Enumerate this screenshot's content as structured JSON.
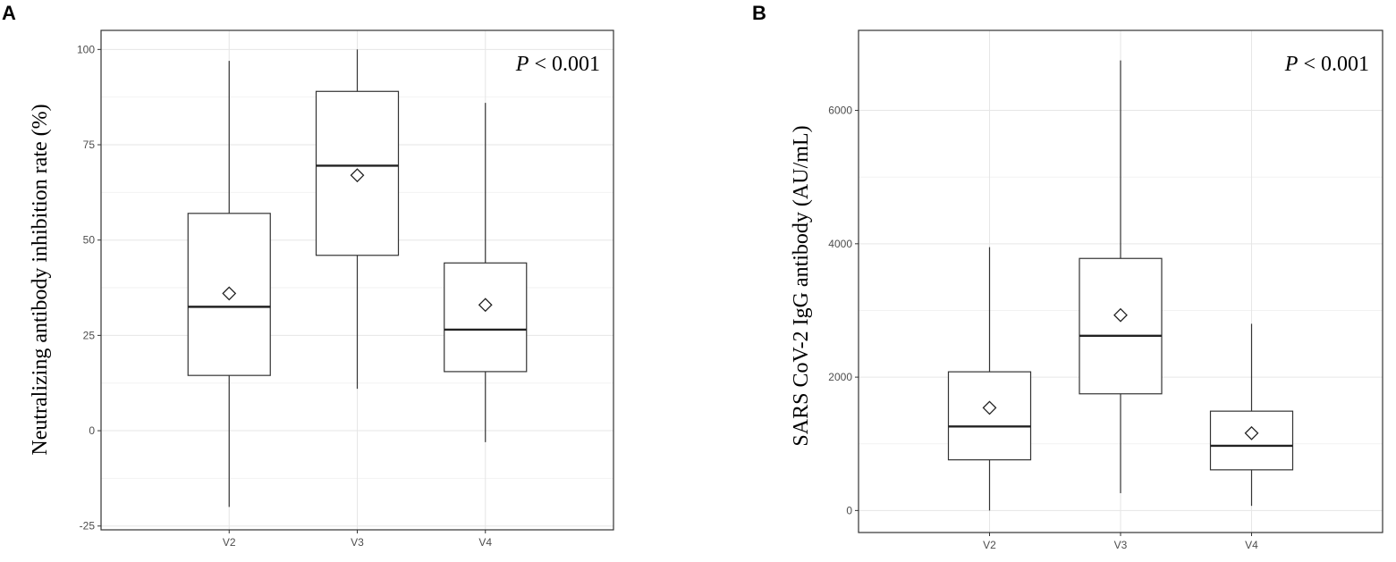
{
  "chart_data": [
    {
      "type": "box",
      "panel_label": "A",
      "ylabel": "Neutralizing antibody inhibition rate (%)",
      "annotation": {
        "p_label": "P",
        "p_rest": " < 0.001"
      },
      "categories": [
        "V2",
        "V3",
        "V4"
      ],
      "ylim": [
        -26,
        105
      ],
      "yticks": [
        -25,
        0,
        25,
        50,
        75,
        100
      ],
      "ytick_labels": [
        "-25",
        "0",
        "25",
        "50",
        "75",
        "100"
      ],
      "grid": true,
      "boxes": [
        {
          "category": "V2",
          "whisker_low": -20,
          "q1": 14.5,
          "median": 32.5,
          "q3": 57,
          "whisker_high": 97,
          "mean": 36
        },
        {
          "category": "V3",
          "whisker_low": 11,
          "q1": 46,
          "median": 69.5,
          "q3": 89,
          "whisker_high": 100,
          "mean": 67
        },
        {
          "category": "V4",
          "whisker_low": -3,
          "q1": 15.5,
          "median": 26.5,
          "q3": 44,
          "whisker_high": 86,
          "mean": 33
        }
      ]
    },
    {
      "type": "box",
      "panel_label": "B",
      "ylabel": "SARS CoV-2 IgG antibody (AU/mL)",
      "annotation": {
        "p_label": "P",
        "p_rest": " < 0.001"
      },
      "categories": [
        "V2",
        "V3",
        "V4"
      ],
      "ylim": [
        -330,
        7200
      ],
      "yticks": [
        0,
        2000,
        4000,
        6000
      ],
      "ytick_labels": [
        "0",
        "2000",
        "4000",
        "6000"
      ],
      "grid": true,
      "boxes": [
        {
          "category": "V2",
          "whisker_low": 0,
          "q1": 760,
          "median": 1260,
          "q3": 2080,
          "whisker_high": 3950,
          "mean": 1540
        },
        {
          "category": "V3",
          "whisker_low": 260,
          "q1": 1750,
          "median": 2620,
          "q3": 3780,
          "whisker_high": 6750,
          "mean": 2930
        },
        {
          "category": "V4",
          "whisker_low": 70,
          "q1": 610,
          "median": 970,
          "q3": 1490,
          "whisker_high": 2800,
          "mean": 1160
        }
      ]
    }
  ]
}
